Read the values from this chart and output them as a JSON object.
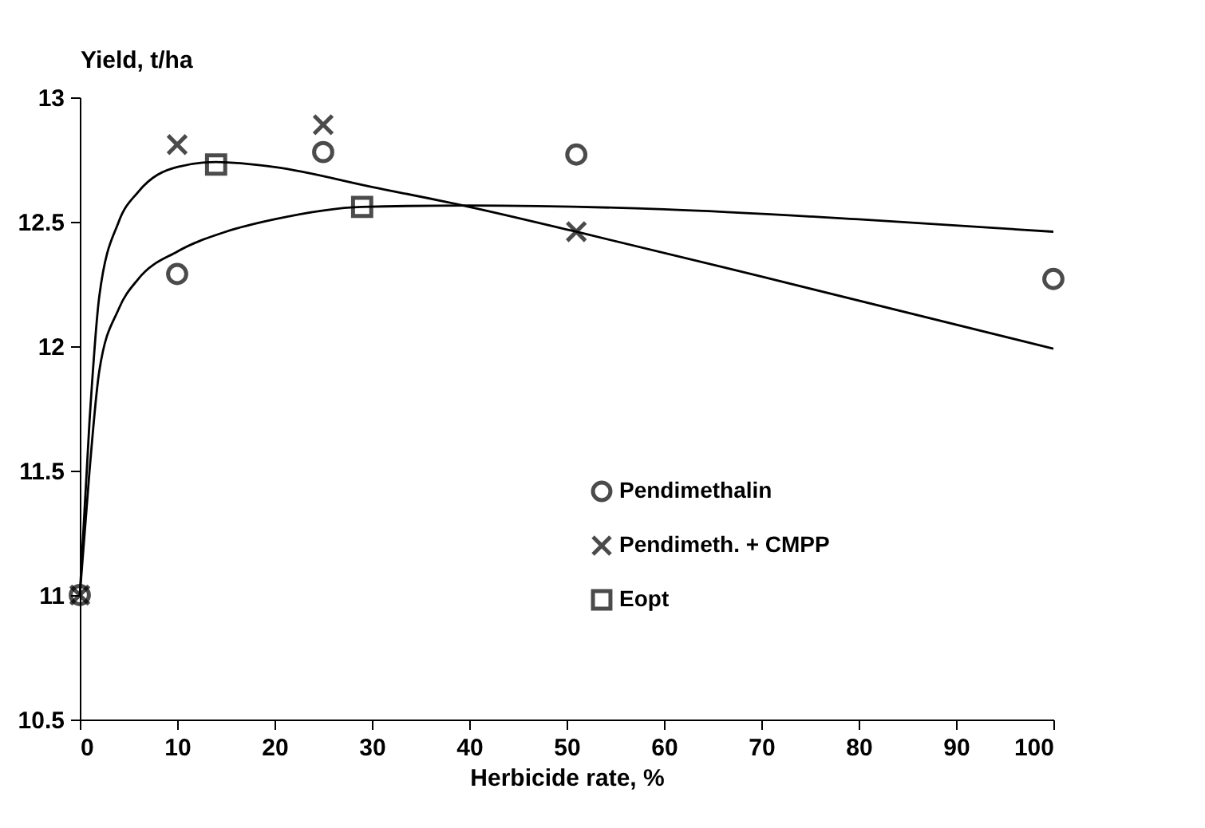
{
  "chart_data": {
    "type": "scatter",
    "xlabel": "Herbicide rate, %",
    "ylabel": "Yield, t/ha",
    "xlim": [
      0,
      100
    ],
    "xticks": [
      0,
      10,
      20,
      30,
      40,
      50,
      60,
      70,
      80,
      90,
      100
    ],
    "ylim": [
      10.5,
      13
    ],
    "yticks": [
      10.5,
      11,
      11.5,
      12,
      12.5,
      13
    ],
    "grid": false,
    "legend": "bottom right",
    "series": [
      {
        "name": "Pendimethalin",
        "marker": "circle",
        "color": "#000000",
        "x": [
          0,
          10,
          25,
          51,
          100
        ],
        "values": [
          11.0,
          12.29,
          12.78,
          12.77,
          12.27
        ]
      },
      {
        "name": "Pendimeth. + CMPP",
        "marker": "cross",
        "color": "#000000",
        "x": [
          0,
          10,
          25,
          51
        ],
        "values": [
          11.0,
          12.81,
          12.89,
          12.46
        ]
      },
      {
        "name": "Eopt",
        "marker": "square",
        "color": "#000000",
        "x": [
          14,
          29
        ],
        "values": [
          12.73,
          12.56
        ]
      },
      {
        "type": "line",
        "marker": "none",
        "line_style": "solid",
        "color": "#000000",
        "x": [
          0,
          1,
          2,
          4,
          6,
          10,
          15,
          20,
          29,
          40,
          60,
          80,
          100
        ],
        "values": [
          11.0,
          11.5,
          11.9,
          12.15,
          12.27,
          12.38,
          12.46,
          12.51,
          12.56,
          12.565,
          12.55,
          12.51,
          12.46
        ]
      },
      {
        "type": "line",
        "marker": "none",
        "line_style": "solid",
        "color": "#000000",
        "x": [
          0,
          1,
          2,
          4,
          6,
          10,
          14,
          20,
          30,
          40,
          51,
          70,
          100
        ],
        "values": [
          11.0,
          11.7,
          12.2,
          12.5,
          12.62,
          12.72,
          12.74,
          12.72,
          12.64,
          12.56,
          12.46,
          12.28,
          11.99
        ]
      }
    ]
  }
}
